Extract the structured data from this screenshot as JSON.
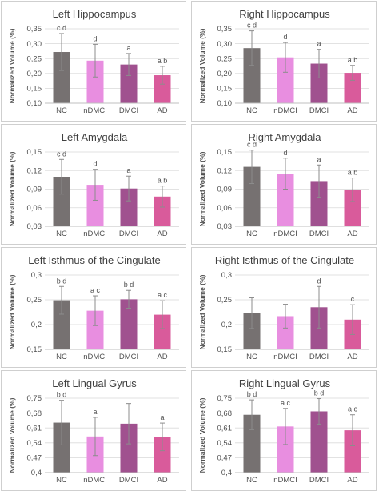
{
  "colors": {
    "NC": "#767171",
    "nDMCI": "#e88ee0",
    "DMCI": "#a0518f",
    "AD": "#d95b9b",
    "err": "#8c8c8c",
    "grid": "#d9d9d9",
    "text": "#404040"
  },
  "chart_data": [
    {
      "type": "bar",
      "title": "Left Hippocampus",
      "ylabel": "Normalized Volume (%)",
      "categories": [
        "NC",
        "nDMCI",
        "DMCI",
        "AD"
      ],
      "values": [
        0.272,
        0.243,
        0.23,
        0.194
      ],
      "errors": [
        0.062,
        0.055,
        0.037,
        0.03
      ],
      "ylim": [
        0.1,
        0.35
      ],
      "yticks": [
        "0,10",
        "0,15",
        "0,20",
        "0,25",
        "0,30",
        "0,35"
      ],
      "annotations": [
        "c d",
        "d",
        "a",
        "a b"
      ]
    },
    {
      "type": "bar",
      "title": "Right Hippocampus",
      "ylabel": "Normalized Volume (%)",
      "categories": [
        "NC",
        "nDMCI",
        "DMCI",
        "AD"
      ],
      "values": [
        0.285,
        0.254,
        0.233,
        0.202
      ],
      "errors": [
        0.058,
        0.05,
        0.048,
        0.025
      ],
      "ylim": [
        0.1,
        0.35
      ],
      "yticks": [
        "0,10",
        "0,15",
        "0,20",
        "0,25",
        "0,30",
        "0,35"
      ],
      "annotations": [
        "c d",
        "d",
        "a",
        "a b"
      ]
    },
    {
      "type": "bar",
      "title": "Left Amygdala",
      "ylabel": "Normalized Volume (%)",
      "categories": [
        "NC",
        "nDMCI",
        "DMCI",
        "AD"
      ],
      "values": [
        0.11,
        0.097,
        0.091,
        0.078
      ],
      "errors": [
        0.028,
        0.025,
        0.02,
        0.017
      ],
      "ylim": [
        0.03,
        0.15
      ],
      "yticks": [
        "0,03",
        "0,06",
        "0,09",
        "0,12",
        "0,15"
      ],
      "annotations": [
        "c d",
        "d",
        "a",
        "a b"
      ]
    },
    {
      "type": "bar",
      "title": "Right Amygdala",
      "ylabel": "Normalized Volume (%)",
      "categories": [
        "NC",
        "nDMCI",
        "DMCI",
        "AD"
      ],
      "values": [
        0.126,
        0.115,
        0.103,
        0.089
      ],
      "errors": [
        0.027,
        0.025,
        0.026,
        0.019
      ],
      "ylim": [
        0.03,
        0.15
      ],
      "yticks": [
        "0,03",
        "0,06",
        "0,09",
        "0,12",
        "0,15"
      ],
      "annotations": [
        "c d",
        "d",
        "a",
        "a b"
      ]
    },
    {
      "type": "bar",
      "title": "Left Isthmus of the Cingulate",
      "ylabel": "Normalized Volume (%)",
      "categories": [
        "NC",
        "nDMCI",
        "DMCI",
        "AD"
      ],
      "values": [
        0.249,
        0.228,
        0.251,
        0.22
      ],
      "errors": [
        0.028,
        0.03,
        0.018,
        0.028
      ],
      "ylim": [
        0.15,
        0.3
      ],
      "yticks": [
        "0,15",
        "0,2",
        "0,25",
        "0,3"
      ],
      "annotations": [
        "b d",
        "a c",
        "b d",
        "a c"
      ]
    },
    {
      "type": "bar",
      "title": "Right Isthmus of the Cingulate",
      "ylabel": "Normalized Volume (%)",
      "categories": [
        "NC",
        "nDMCI",
        "DMCI",
        "AD"
      ],
      "values": [
        0.223,
        0.217,
        0.235,
        0.21
      ],
      "errors": [
        0.031,
        0.024,
        0.042,
        0.03
      ],
      "ylim": [
        0.15,
        0.3
      ],
      "yticks": [
        "0,15",
        "0,2",
        "0,25",
        "0,3"
      ],
      "annotations": [
        "",
        "",
        "d",
        "c"
      ]
    },
    {
      "type": "bar",
      "title": "Left Lingual Gyrus",
      "ylabel": "Normalized Volume (%)",
      "categories": [
        "NC",
        "nDMCI",
        "DMCI",
        "AD"
      ],
      "values": [
        0.635,
        0.57,
        0.63,
        0.568
      ],
      "errors": [
        0.105,
        0.09,
        0.095,
        0.065
      ],
      "ylim": [
        0.4,
        0.75
      ],
      "yticks": [
        "0,4",
        "0,47",
        "0,54",
        "0,61",
        "0,68",
        "0,75"
      ],
      "annotations": [
        "b d",
        "a",
        "",
        "a"
      ]
    },
    {
      "type": "bar",
      "title": "Right Lingual Gyrus",
      "ylabel": "Normalized Volume (%)",
      "categories": [
        "NC",
        "nDMCI",
        "DMCI",
        "AD"
      ],
      "values": [
        0.672,
        0.617,
        0.688,
        0.599
      ],
      "errors": [
        0.07,
        0.085,
        0.06,
        0.073
      ],
      "ylim": [
        0.4,
        0.75
      ],
      "yticks": [
        "0,4",
        "0,47",
        "0,54",
        "0,61",
        "0,68",
        "0,75"
      ],
      "annotations": [
        "b d",
        "a c",
        "b d",
        "a c"
      ]
    }
  ]
}
